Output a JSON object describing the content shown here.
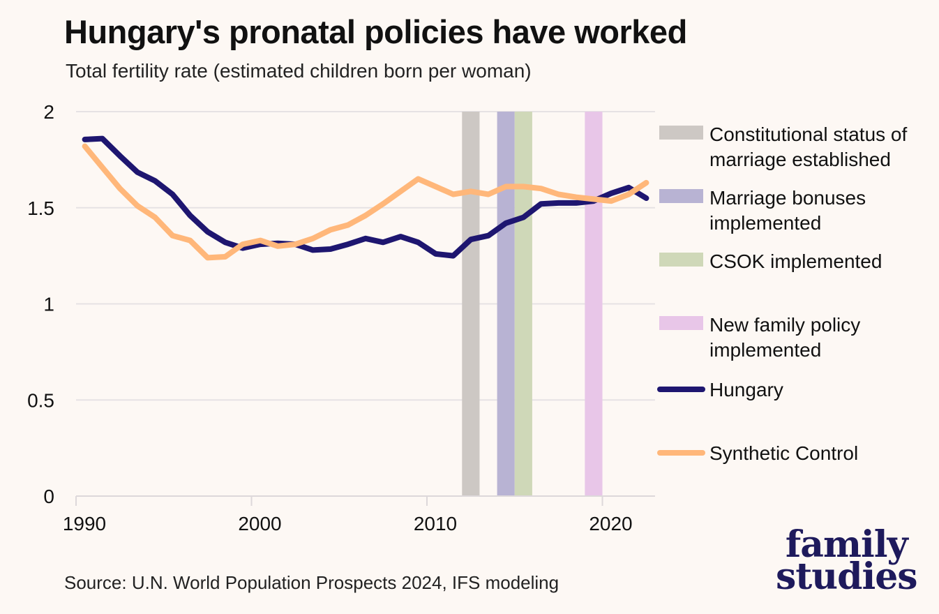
{
  "title": "Hungary's pronatal policies have worked",
  "subtitle": "Total fertility rate (estimated children born per woman)",
  "source": "Source: U.N. World Population Prospects 2024, IFS modeling",
  "logo": {
    "line1": "family",
    "line2": "studies"
  },
  "chart_data": {
    "type": "line",
    "title": "Hungary's pronatal policies have worked",
    "ylabel": "Total fertility rate (estimated children born per woman)",
    "xlabel": "",
    "xlim": [
      1990,
      2023
    ],
    "ylim": [
      0,
      2
    ],
    "x_ticks": [
      1990,
      2000,
      2010,
      2020
    ],
    "y_ticks": [
      0,
      0.5,
      1,
      1.5,
      2
    ],
    "y_tick_labels": [
      "0",
      "0.5",
      "1",
      "1.5",
      "2"
    ],
    "grid": true,
    "legend_position": "right",
    "x": [
      1990,
      1991,
      1992,
      1993,
      1994,
      1995,
      1996,
      1997,
      1998,
      1999,
      2000,
      2001,
      2002,
      2003,
      2004,
      2005,
      2006,
      2007,
      2008,
      2009,
      2010,
      2011,
      2012,
      2013,
      2014,
      2015,
      2016,
      2017,
      2018,
      2019,
      2020,
      2021,
      2022
    ],
    "series": [
      {
        "name": "Hungary",
        "color": "#1e1670",
        "values": [
          1.855,
          1.86,
          1.77,
          1.685,
          1.64,
          1.57,
          1.46,
          1.375,
          1.32,
          1.29,
          1.31,
          1.315,
          1.31,
          1.28,
          1.285,
          1.31,
          1.34,
          1.32,
          1.35,
          1.32,
          1.26,
          1.25,
          1.335,
          1.355,
          1.42,
          1.45,
          1.52,
          1.525,
          1.525,
          1.535,
          1.575,
          1.605,
          1.55
        ]
      },
      {
        "name": "Synthetic Control",
        "color": "#ffb77a",
        "values": [
          1.82,
          1.71,
          1.6,
          1.51,
          1.45,
          1.355,
          1.33,
          1.24,
          1.245,
          1.31,
          1.33,
          1.3,
          1.31,
          1.34,
          1.385,
          1.41,
          1.46,
          1.52,
          1.585,
          1.65,
          1.61,
          1.57,
          1.585,
          1.57,
          1.61,
          1.61,
          1.6,
          1.57,
          1.555,
          1.545,
          1.535,
          1.57,
          1.63
        ]
      }
    ],
    "bands": [
      {
        "label_line1": "Constitutional status of",
        "label_line2": "marriage established",
        "start": 2012,
        "end": 2013,
        "color": "#cdc8c4"
      },
      {
        "label_line1": "Marriage bonuses",
        "label_line2": "implemented",
        "start": 2014,
        "end": 2015,
        "color": "#b8b3d3"
      },
      {
        "label_line1": "CSOK implemented",
        "label_line2": "",
        "start": 2015,
        "end": 2016,
        "color": "#cfd8b8"
      },
      {
        "label_line1": "New family policy",
        "label_line2": "implemented",
        "start": 2019,
        "end": 2020,
        "color": "#e8c6e8"
      }
    ]
  }
}
